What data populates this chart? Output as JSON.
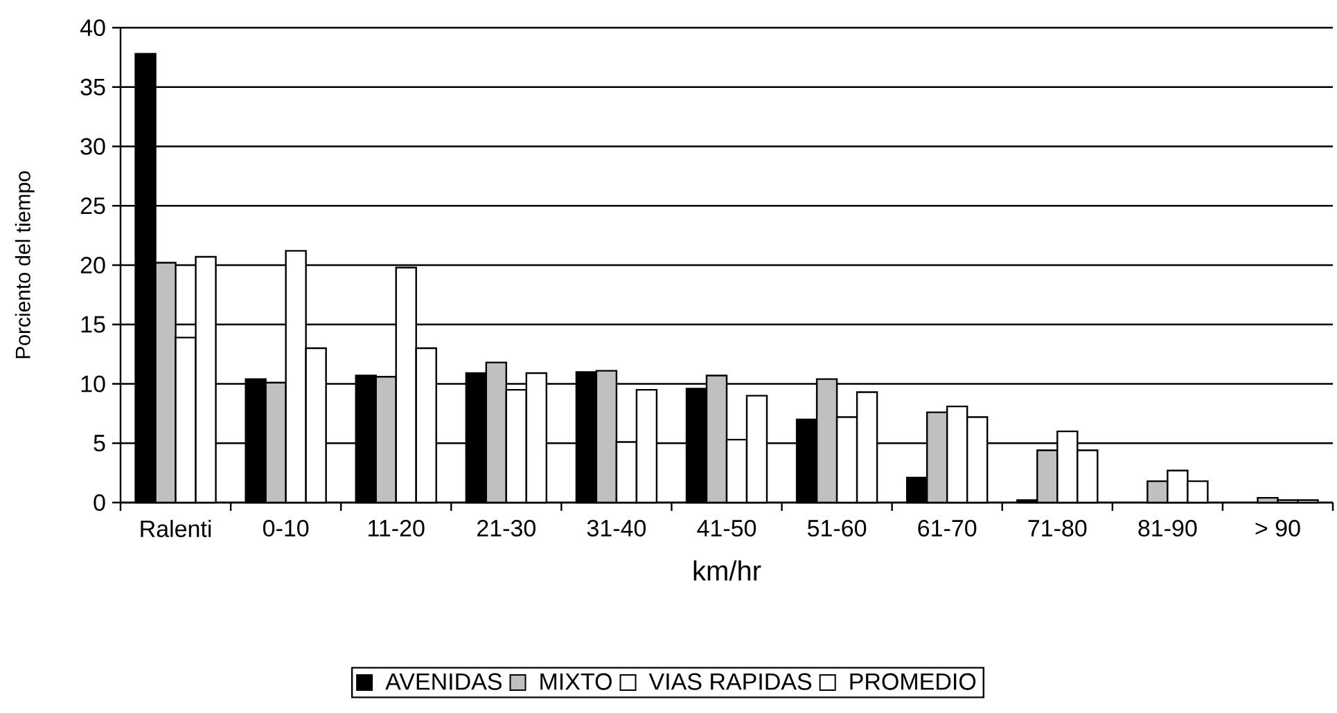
{
  "chart_data": {
    "type": "bar",
    "xlabel": "km/hr",
    "ylabel": "Porciento del tiempo",
    "categories": [
      "Ralenti",
      "0-10",
      "11-20",
      "21-30",
      "31-40",
      "41-50",
      "51-60",
      "61-70",
      "71-80",
      "81-90",
      "> 90"
    ],
    "series": [
      {
        "name": "AVENIDAS",
        "color": "#000000",
        "values": [
          37.8,
          10.4,
          10.7,
          10.9,
          11.0,
          9.6,
          7.0,
          2.1,
          0.2,
          null,
          null
        ]
      },
      {
        "name": "MIXTO",
        "color": "#c0c0c0",
        "values": [
          20.2,
          10.1,
          10.6,
          11.8,
          11.1,
          10.7,
          10.4,
          7.6,
          4.4,
          1.8,
          0.4
        ]
      },
      {
        "name": "VIAS RAPIDAS",
        "color": "#ffffff",
        "values": [
          13.9,
          21.2,
          19.8,
          9.5,
          5.1,
          5.3,
          7.2,
          8.1,
          6.0,
          2.7,
          0.2
        ]
      },
      {
        "name": "PROMEDIO",
        "color": "#ffffff",
        "values": [
          20.7,
          13.0,
          13.0,
          10.9,
          9.5,
          9.0,
          9.3,
          7.2,
          4.4,
          1.8,
          0.2
        ]
      }
    ],
    "ylim": [
      0,
      40
    ],
    "yticks": [
      0,
      5,
      10,
      15,
      20,
      25,
      30,
      35,
      40
    ],
    "grid": "y",
    "legend": "bottom"
  }
}
